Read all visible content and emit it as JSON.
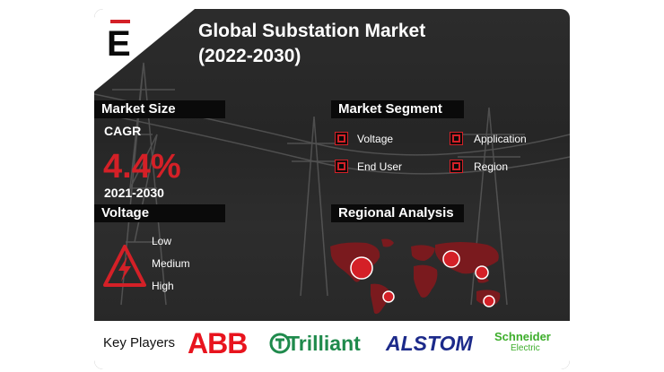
{
  "title_line1": "Global Substation Market",
  "title_line2": "(2022-2030)",
  "logo_letter": "E",
  "market_size": {
    "heading": "Market Size",
    "cagr_label": "CAGR",
    "cagr_value": "4.4%",
    "period": "2021-2030"
  },
  "market_segment": {
    "heading": "Market Segment",
    "items": [
      "Voltage",
      "Application",
      "End User",
      "Region"
    ]
  },
  "voltage": {
    "heading": "Voltage",
    "items": [
      "Low",
      "Medium",
      "High"
    ]
  },
  "regional": {
    "heading": "Regional Analysis"
  },
  "key_players": {
    "label": "Key Players",
    "logos": [
      "ABB",
      "Trilliant",
      "ALSTOM",
      "Schneider",
      "Electric"
    ]
  },
  "colors": {
    "accent_red": "#d42027",
    "bar_black": "#0a0a0a",
    "card_dark": "#2a2a2a",
    "trilliant_green": "#1f8a4c",
    "alstom_blue": "#1c2a8a",
    "schneider_green": "#3dae2b"
  },
  "icons": [
    "logo-badge",
    "voltage-warning-icon",
    "world-map"
  ]
}
